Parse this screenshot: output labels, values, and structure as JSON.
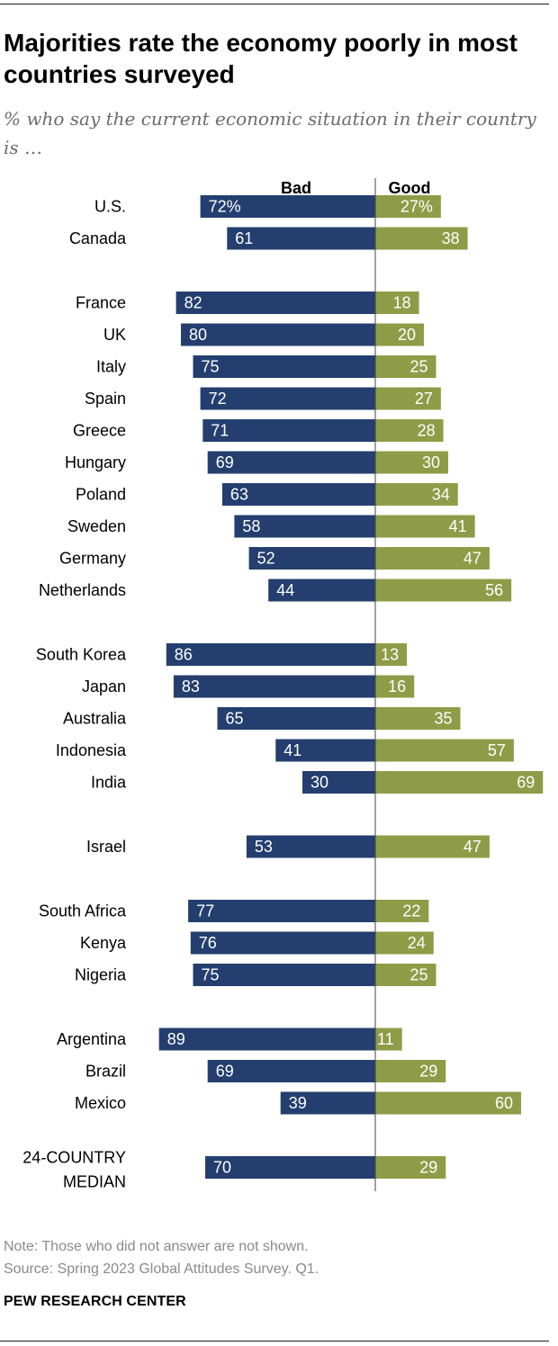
{
  "title": "Majorities rate the economy poorly in most countries surveyed",
  "subtitle": "% who say the current economic situation in their country is …",
  "note": "Note: Those who did not answer are not shown.",
  "source": "Source: Spring 2023 Global Attitudes Survey. Q1.",
  "brand": "PEW RESEARCH CENTER",
  "colors": {
    "bad": "#243f6f",
    "good": "#8f9c47",
    "axis": "#444444"
  },
  "chart_data": {
    "type": "bar",
    "orientation": "horizontal-diverging",
    "series": [
      {
        "name": "Bad",
        "color": "#243f6f"
      },
      {
        "name": "Good",
        "color": "#8f9c47"
      }
    ],
    "groups": [
      {
        "rows": [
          {
            "label": "U.S.",
            "bad": 72,
            "good": 27,
            "bad_text": "72%",
            "good_text": "27%"
          },
          {
            "label": "Canada",
            "bad": 61,
            "good": 38,
            "bad_text": "61",
            "good_text": "38"
          }
        ]
      },
      {
        "rows": [
          {
            "label": "France",
            "bad": 82,
            "good": 18,
            "bad_text": "82",
            "good_text": "18"
          },
          {
            "label": "UK",
            "bad": 80,
            "good": 20,
            "bad_text": "80",
            "good_text": "20"
          },
          {
            "label": "Italy",
            "bad": 75,
            "good": 25,
            "bad_text": "75",
            "good_text": "25"
          },
          {
            "label": "Spain",
            "bad": 72,
            "good": 27,
            "bad_text": "72",
            "good_text": "27"
          },
          {
            "label": "Greece",
            "bad": 71,
            "good": 28,
            "bad_text": "71",
            "good_text": "28"
          },
          {
            "label": "Hungary",
            "bad": 69,
            "good": 30,
            "bad_text": "69",
            "good_text": "30"
          },
          {
            "label": "Poland",
            "bad": 63,
            "good": 34,
            "bad_text": "63",
            "good_text": "34"
          },
          {
            "label": "Sweden",
            "bad": 58,
            "good": 41,
            "bad_text": "58",
            "good_text": "41"
          },
          {
            "label": "Germany",
            "bad": 52,
            "good": 47,
            "bad_text": "52",
            "good_text": "47"
          },
          {
            "label": "Netherlands",
            "bad": 44,
            "good": 56,
            "bad_text": "44",
            "good_text": "56"
          }
        ]
      },
      {
        "rows": [
          {
            "label": "South Korea",
            "bad": 86,
            "good": 13,
            "bad_text": "86",
            "good_text": "13"
          },
          {
            "label": "Japan",
            "bad": 83,
            "good": 16,
            "bad_text": "83",
            "good_text": "16"
          },
          {
            "label": "Australia",
            "bad": 65,
            "good": 35,
            "bad_text": "65",
            "good_text": "35"
          },
          {
            "label": "Indonesia",
            "bad": 41,
            "good": 57,
            "bad_text": "41",
            "good_text": "57"
          },
          {
            "label": "India",
            "bad": 30,
            "good": 69,
            "bad_text": "30",
            "good_text": "69"
          }
        ]
      },
      {
        "rows": [
          {
            "label": "Israel",
            "bad": 53,
            "good": 47,
            "bad_text": "53",
            "good_text": "47"
          }
        ]
      },
      {
        "rows": [
          {
            "label": "South Africa",
            "bad": 77,
            "good": 22,
            "bad_text": "77",
            "good_text": "22"
          },
          {
            "label": "Kenya",
            "bad": 76,
            "good": 24,
            "bad_text": "76",
            "good_text": "24"
          },
          {
            "label": "Nigeria",
            "bad": 75,
            "good": 25,
            "bad_text": "75",
            "good_text": "25"
          }
        ]
      },
      {
        "rows": [
          {
            "label": "Argentina",
            "bad": 89,
            "good": 11,
            "bad_text": "89",
            "good_text": "11"
          },
          {
            "label": "Brazil",
            "bad": 69,
            "good": 29,
            "bad_text": "69",
            "good_text": "29"
          },
          {
            "label": "Mexico",
            "bad": 39,
            "good": 60,
            "bad_text": "39",
            "good_text": "60"
          }
        ]
      },
      {
        "rows": [
          {
            "label": "24-COUNTRY MEDIAN",
            "label_lines": [
              "24-COUNTRY",
              "MEDIAN"
            ],
            "bad": 70,
            "good": 29,
            "bad_text": "70",
            "good_text": "29"
          }
        ]
      }
    ]
  }
}
